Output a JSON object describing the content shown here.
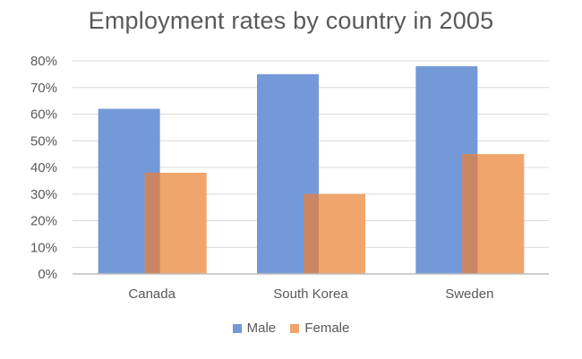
{
  "chart_data": {
    "type": "bar",
    "title": "Employment rates by country in 2005",
    "categories": [
      "Canada",
      "South Korea",
      "Sweden"
    ],
    "series": [
      {
        "name": "Male",
        "values": [
          62,
          75,
          78
        ],
        "color": "#7399D8"
      },
      {
        "name": "Female",
        "values": [
          38,
          30,
          45
        ],
        "color": "#F0A56C"
      }
    ],
    "overlap_color": "#C98663",
    "y_ticks": [
      "0%",
      "10%",
      "20%",
      "30%",
      "40%",
      "50%",
      "60%",
      "70%",
      "80%"
    ],
    "ylim": [
      0,
      80
    ],
    "y_unit": "%",
    "grid": true,
    "legend_position": "bottom"
  }
}
